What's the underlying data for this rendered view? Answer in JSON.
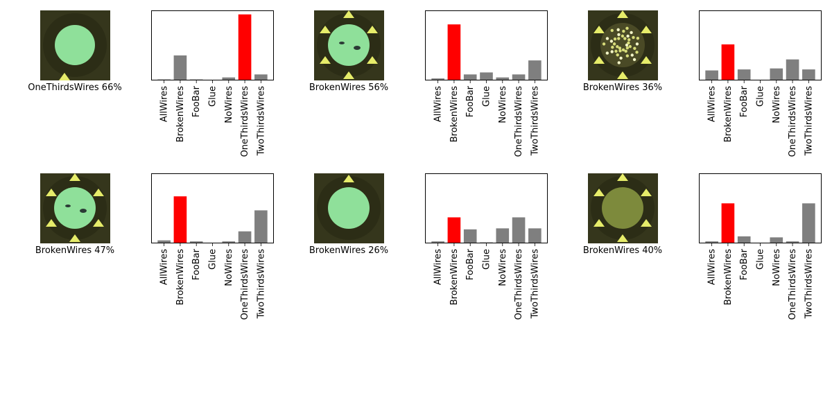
{
  "chart_data": [
    {
      "type": "bar",
      "categories": [
        "AllWires",
        "BrokenWires",
        "FooBar",
        "Glue",
        "NoWires",
        "OneThirdsWires",
        "TwoThirdsWires"
      ],
      "values": [
        0.01,
        0.25,
        0.01,
        0.0,
        0.03,
        0.66,
        0.06
      ],
      "highlight": "OneThirdsWires",
      "caption": "OneThirdsWires 66%",
      "image": "disc-clean",
      "ylim": [
        0,
        0.7
      ]
    },
    {
      "type": "bar",
      "categories": [
        "AllWires",
        "BrokenWires",
        "FooBar",
        "Glue",
        "NoWires",
        "OneThirdsWires",
        "TwoThirdsWires"
      ],
      "values": [
        0.02,
        0.56,
        0.06,
        0.08,
        0.03,
        0.06,
        0.2
      ],
      "highlight": "BrokenWires",
      "caption": "BrokenWires 56%",
      "image": "disc-wires",
      "ylim": [
        0,
        0.7
      ]
    },
    {
      "type": "bar",
      "categories": [
        "AllWires",
        "BrokenWires",
        "FooBar",
        "Glue",
        "NoWires",
        "OneThirdsWires",
        "TwoThirdsWires"
      ],
      "values": [
        0.1,
        0.36,
        0.11,
        0.0,
        0.12,
        0.21,
        0.11
      ],
      "highlight": "BrokenWires",
      "caption": "BrokenWires 36%",
      "image": "disc-glue",
      "ylim": [
        0,
        0.7
      ]
    },
    {
      "type": "bar",
      "categories": [
        "AllWires",
        "BrokenWires",
        "FooBar",
        "Glue",
        "NoWires",
        "OneThirdsWires",
        "TwoThirdsWires"
      ],
      "values": [
        0.03,
        0.47,
        0.02,
        0.0,
        0.02,
        0.12,
        0.33
      ],
      "highlight": "BrokenWires",
      "caption": "BrokenWires 47%",
      "image": "disc-wires",
      "ylim": [
        0,
        0.7
      ]
    },
    {
      "type": "bar",
      "categories": [
        "AllWires",
        "BrokenWires",
        "FooBar",
        "Glue",
        "NoWires",
        "OneThirdsWires",
        "TwoThirdsWires"
      ],
      "values": [
        0.02,
        0.26,
        0.14,
        0.01,
        0.15,
        0.26,
        0.15
      ],
      "highlight": "BrokenWires",
      "caption": "BrokenWires 26%",
      "image": "disc-plain",
      "ylim": [
        0,
        0.7
      ]
    },
    {
      "type": "bar",
      "categories": [
        "AllWires",
        "BrokenWires",
        "FooBar",
        "Glue",
        "NoWires",
        "OneThirdsWires",
        "TwoThirdsWires"
      ],
      "values": [
        0.02,
        0.4,
        0.07,
        0.0,
        0.06,
        0.02,
        0.4
      ],
      "highlight": "BrokenWires",
      "caption": "BrokenWires 40%",
      "image": "disc-dark",
      "ylim": [
        0,
        0.7
      ]
    }
  ],
  "colors": {
    "bar": "#7f7f7f",
    "highlight": "#ff0000",
    "frame": "#000000"
  }
}
